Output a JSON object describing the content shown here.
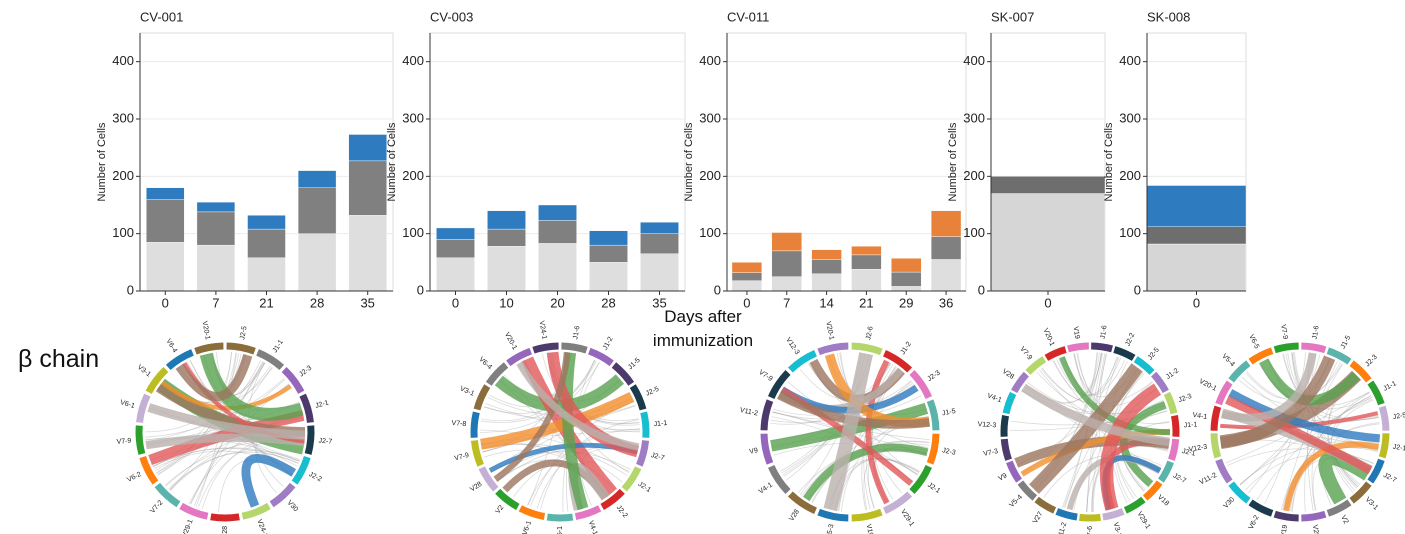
{
  "chart_data": [
    {
      "type": "bar",
      "title": "CV-001",
      "y_label": "Number of Cells",
      "categories": [
        "0",
        "7",
        "21",
        "28",
        "35"
      ],
      "series": [
        {
          "color": "#dedede",
          "values": [
            85,
            80,
            58,
            100,
            132
          ]
        },
        {
          "color": "#808080",
          "values": [
            75,
            58,
            50,
            80,
            95
          ]
        },
        {
          "color": "#2e7bbf",
          "values": [
            20,
            17,
            24,
            30,
            46
          ]
        }
      ],
      "ylim": [
        0,
        450
      ],
      "yticks": [
        0,
        100,
        200,
        300,
        400
      ],
      "grid": true
    },
    {
      "type": "bar",
      "title": "CV-003",
      "y_label": "Number of Cells",
      "categories": [
        "0",
        "10",
        "20",
        "28",
        "35"
      ],
      "series": [
        {
          "color": "#dedede",
          "values": [
            58,
            78,
            83,
            50,
            65
          ]
        },
        {
          "color": "#808080",
          "values": [
            32,
            30,
            40,
            30,
            35
          ]
        },
        {
          "color": "#2e7bbf",
          "values": [
            20,
            32,
            27,
            25,
            20
          ]
        }
      ],
      "ylim": [
        0,
        450
      ],
      "yticks": [
        0,
        100,
        200,
        300,
        400
      ],
      "grid": true
    },
    {
      "type": "bar",
      "title": "CV-011",
      "y_label": "Number of Cells",
      "categories": [
        "0",
        "7",
        "14",
        "21",
        "29",
        "36"
      ],
      "series": [
        {
          "color": "#dedede",
          "values": [
            18,
            25,
            30,
            38,
            8,
            55
          ]
        },
        {
          "color": "#808080",
          "values": [
            14,
            45,
            25,
            25,
            25,
            40
          ]
        },
        {
          "color": "#e8823a",
          "values": [
            18,
            32,
            17,
            15,
            24,
            45
          ]
        }
      ],
      "ylim": [
        0,
        450
      ],
      "yticks": [
        0,
        100,
        200,
        300,
        400
      ],
      "grid": true
    },
    {
      "type": "bar",
      "title": "SK-007",
      "y_label": "Number of Cells",
      "categories": [
        "0"
      ],
      "series": [
        {
          "color": "#d6d6d6",
          "values": [
            170
          ]
        },
        {
          "color": "#6e6e6e",
          "values": [
            30
          ]
        }
      ],
      "ylim": [
        0,
        450
      ],
      "yticks": [
        0,
        100,
        200,
        300,
        400
      ],
      "grid": true
    },
    {
      "type": "bar",
      "title": "SK-008",
      "y_label": "Number of Cells",
      "categories": [
        "0"
      ],
      "series": [
        {
          "color": "#d6d6d6",
          "values": [
            82
          ]
        },
        {
          "color": "#6e6e6e",
          "values": [
            30
          ]
        },
        {
          "color": "#2e7bbf",
          "values": [
            72
          ]
        }
      ],
      "ylim": [
        0,
        450
      ],
      "yticks": [
        0,
        100,
        200,
        300,
        400
      ],
      "grid": true
    }
  ],
  "x_label": "Days after immunization",
  "row_label": "β chain",
  "chords": [
    {
      "labels": [
        "V20-1",
        "V6-4",
        "V3-1",
        "V6-1",
        "V7-9",
        "V6-2",
        "V7-2",
        "V29-1",
        "V28",
        "V24-1",
        "V30",
        "J2-2",
        "J2-7",
        "J2-1",
        "J2-3",
        "J1-1",
        "J2-5"
      ]
    },
    {
      "labels": [
        "V24-1",
        "V20-1",
        "V6-4",
        "V3-1",
        "V7-8",
        "V7-9",
        "V28",
        "V2",
        "V6-1",
        "V5-1",
        "V4-1",
        "J2-2",
        "J2-1",
        "J2-7",
        "J1-1",
        "J2-5",
        "J1-5",
        "J1-2",
        "J1-6"
      ]
    },
    {
      "labels": [
        "V20-1",
        "V12-3",
        "V7-9",
        "V11-2",
        "V9",
        "V4-1",
        "V28",
        "V5-3",
        "V19",
        "V29-1",
        "J2-1",
        "J2-3",
        "J1-5",
        "J2-3",
        "J1-2",
        "J2-6"
      ]
    },
    {
      "labels": [
        "V19",
        "V20-1",
        "V7-9",
        "V28",
        "V4-1",
        "V12-3",
        "V7-3",
        "V9",
        "V5-4",
        "V27",
        "V11-2",
        "V7-6",
        "V3-1",
        "V29-1",
        "V18",
        "J2-7",
        "J2-1",
        "J1-1",
        "J2-3",
        "J1-2",
        "J2-5",
        "J2-2",
        "J1-6"
      ]
    },
    {
      "labels": [
        "V7-9",
        "V6-5",
        "V5-4",
        "V20-1",
        "V4-1",
        "V12-3",
        "V11-2",
        "V30",
        "V6-2",
        "V19",
        "V28",
        "V2",
        "V3-1",
        "J2-7",
        "J2-1",
        "J2-5",
        "J1-1",
        "J2-3",
        "J1-5",
        "J1-6"
      ]
    }
  ]
}
